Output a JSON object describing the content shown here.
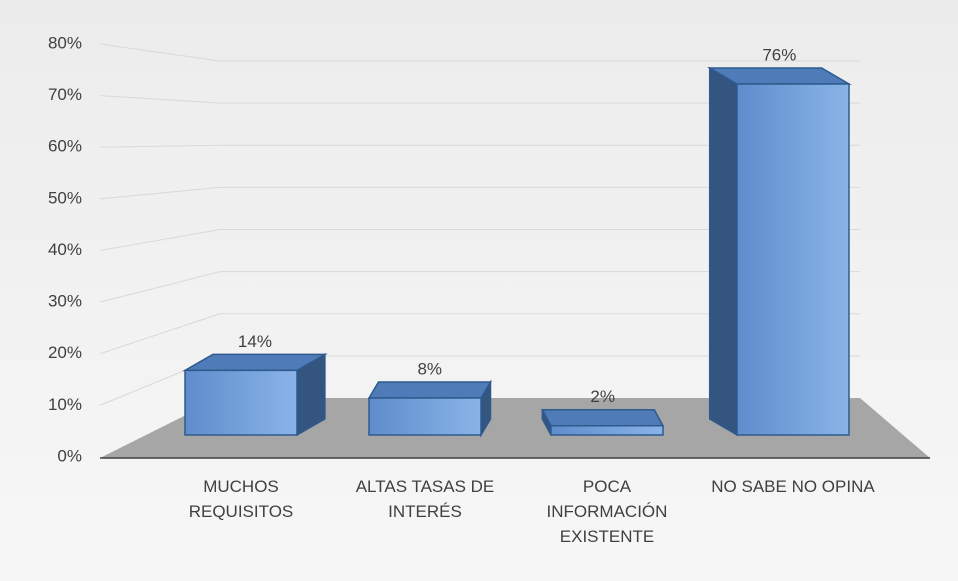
{
  "chart_data": {
    "type": "bar3d",
    "categories": [
      "MUCHOS REQUISITOS",
      "ALTAS TASAS DE INTERÉS",
      "POCA INFORMACIÓN EXISTENTE",
      "NO SABE NO OPINA"
    ],
    "values": [
      14,
      8,
      2,
      76
    ],
    "value_labels": [
      "14%",
      "8%",
      "2%",
      "76%"
    ],
    "color": "#6a98d6",
    "ylim": [
      0,
      80
    ],
    "yticks": [
      {
        "value": 0,
        "label": "0%"
      },
      {
        "value": 10,
        "label": "10%"
      },
      {
        "value": 20,
        "label": "20%"
      },
      {
        "value": 30,
        "label": "30%"
      },
      {
        "value": 40,
        "label": "40%"
      },
      {
        "value": 50,
        "label": "50%"
      },
      {
        "value": 60,
        "label": "60%"
      },
      {
        "value": 70,
        "label": "70%"
      },
      {
        "value": 80,
        "label": "80%"
      }
    ],
    "grid": true
  }
}
